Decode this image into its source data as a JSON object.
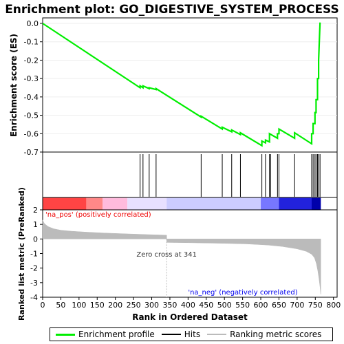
{
  "chart_data": {
    "type": "line",
    "title": "Enrichment plot: GO_DIGESTIVE_SYSTEM_PROCESS",
    "xlabel": "Rank in Ordered Dataset",
    "es_ylabel": "Enrichment score (ES)",
    "metric_ylabel": "Ranked list metric (PreRanked)",
    "x_range": [
      0,
      810
    ],
    "x_ticks": [
      "0",
      "50",
      "100",
      "150",
      "200",
      "250",
      "300",
      "350",
      "400",
      "450",
      "500",
      "550",
      "600",
      "650",
      "700",
      "750",
      "800"
    ],
    "es_range": [
      -0.7,
      0.03
    ],
    "es_ticks": [
      "0.0",
      "-0.1",
      "-0.2",
      "-0.3",
      "-0.4",
      "-0.5",
      "-0.6",
      "-0.7"
    ],
    "metric_range": [
      -4,
      2
    ],
    "metric_ticks": [
      "2",
      "1",
      "0",
      "-1",
      "-2",
      "-3",
      "-4"
    ],
    "n_genes": 765,
    "zero_cross": 341,
    "zero_cross_label": "Zero cross at 341",
    "pos_label": "'na_pos' (positively correlated)",
    "neg_label": "'na_neg' (negatively correlated)",
    "hits": [
      268,
      276,
      293,
      312,
      436,
      494,
      520,
      544,
      603,
      613,
      624,
      627,
      646,
      650,
      693,
      740,
      744,
      749,
      752,
      756,
      759,
      763
    ],
    "enrichment_profile": [
      [
        0,
        0.0
      ],
      [
        268,
        -0.35
      ],
      [
        268,
        -0.34
      ],
      [
        276,
        -0.35
      ],
      [
        276,
        -0.34
      ],
      [
        293,
        -0.355
      ],
      [
        293,
        -0.35
      ],
      [
        312,
        -0.36
      ],
      [
        312,
        -0.355
      ],
      [
        436,
        -0.51
      ],
      [
        436,
        -0.505
      ],
      [
        494,
        -0.575
      ],
      [
        494,
        -0.565
      ],
      [
        520,
        -0.59
      ],
      [
        520,
        -0.58
      ],
      [
        544,
        -0.605
      ],
      [
        544,
        -0.595
      ],
      [
        603,
        -0.665
      ],
      [
        603,
        -0.64
      ],
      [
        613,
        -0.65
      ],
      [
        613,
        -0.635
      ],
      [
        624,
        -0.645
      ],
      [
        624,
        -0.6
      ],
      [
        646,
        -0.625
      ],
      [
        646,
        -0.6
      ],
      [
        650,
        -0.6
      ],
      [
        650,
        -0.575
      ],
      [
        693,
        -0.625
      ],
      [
        693,
        -0.595
      ],
      [
        740,
        -0.655
      ],
      [
        740,
        -0.6
      ],
      [
        744,
        -0.6
      ],
      [
        744,
        -0.545
      ],
      [
        749,
        -0.545
      ],
      [
        749,
        -0.485
      ],
      [
        752,
        -0.485
      ],
      [
        752,
        -0.415
      ],
      [
        756,
        -0.415
      ],
      [
        756,
        -0.3
      ],
      [
        759,
        -0.3
      ],
      [
        759,
        -0.2
      ],
      [
        762,
        -0.05
      ],
      [
        763,
        0.005
      ]
    ],
    "metric_profile": [
      [
        0,
        1.3
      ],
      [
        5,
        1.05
      ],
      [
        15,
        0.85
      ],
      [
        30,
        0.7
      ],
      [
        50,
        0.6
      ],
      [
        80,
        0.53
      ],
      [
        120,
        0.47
      ],
      [
        170,
        0.41
      ],
      [
        230,
        0.35
      ],
      [
        290,
        0.3
      ],
      [
        341,
        0.26
      ],
      [
        341.5,
        -0.24
      ],
      [
        400,
        -0.26
      ],
      [
        500,
        -0.3
      ],
      [
        560,
        -0.34
      ],
      [
        620,
        -0.42
      ],
      [
        660,
        -0.52
      ],
      [
        700,
        -0.68
      ],
      [
        725,
        -0.85
      ],
      [
        740,
        -1.05
      ],
      [
        748,
        -1.3
      ],
      [
        753,
        -1.7
      ],
      [
        757,
        -2.2
      ],
      [
        760,
        -2.7
      ],
      [
        763,
        -3.3
      ],
      [
        765,
        -3.8
      ]
    ],
    "legend": [
      {
        "label": "Enrichment profile",
        "color": "#00ee00"
      },
      {
        "label": "Hits",
        "color": "#000000"
      },
      {
        "label": "Ranking metric scores",
        "color": "#bbbbbb"
      }
    ],
    "colors": {
      "profile": "#00ee00",
      "metric_fill": "#bbbbbb",
      "pos_text": "#ee0000",
      "neg_text": "#0000ee",
      "bar_gradient": [
        "#ff4444",
        "#ff8888",
        "#ffbbdd",
        "#e8e0ff",
        "#ccccff",
        "#7777ff",
        "#2222dd"
      ]
    }
  }
}
